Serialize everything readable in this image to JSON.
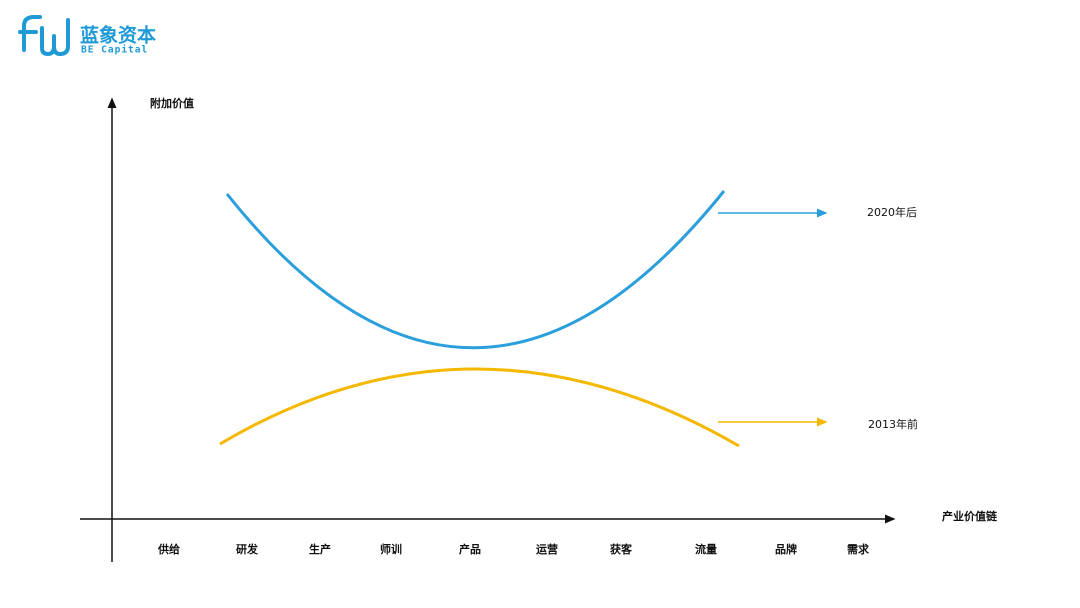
{
  "logo": {
    "name": "蓝象资本",
    "subtitle": "BE Capital"
  },
  "axes": {
    "y_label": "附加价值",
    "x_label": "产业价值链"
  },
  "stages": [
    "供给",
    "研发",
    "生产",
    "师训",
    "产品",
    "运营",
    "获客",
    "流量",
    "品牌",
    "需求"
  ],
  "curves": [
    {
      "label": "2020年后"
    },
    {
      "label": "2013年前"
    }
  ]
}
